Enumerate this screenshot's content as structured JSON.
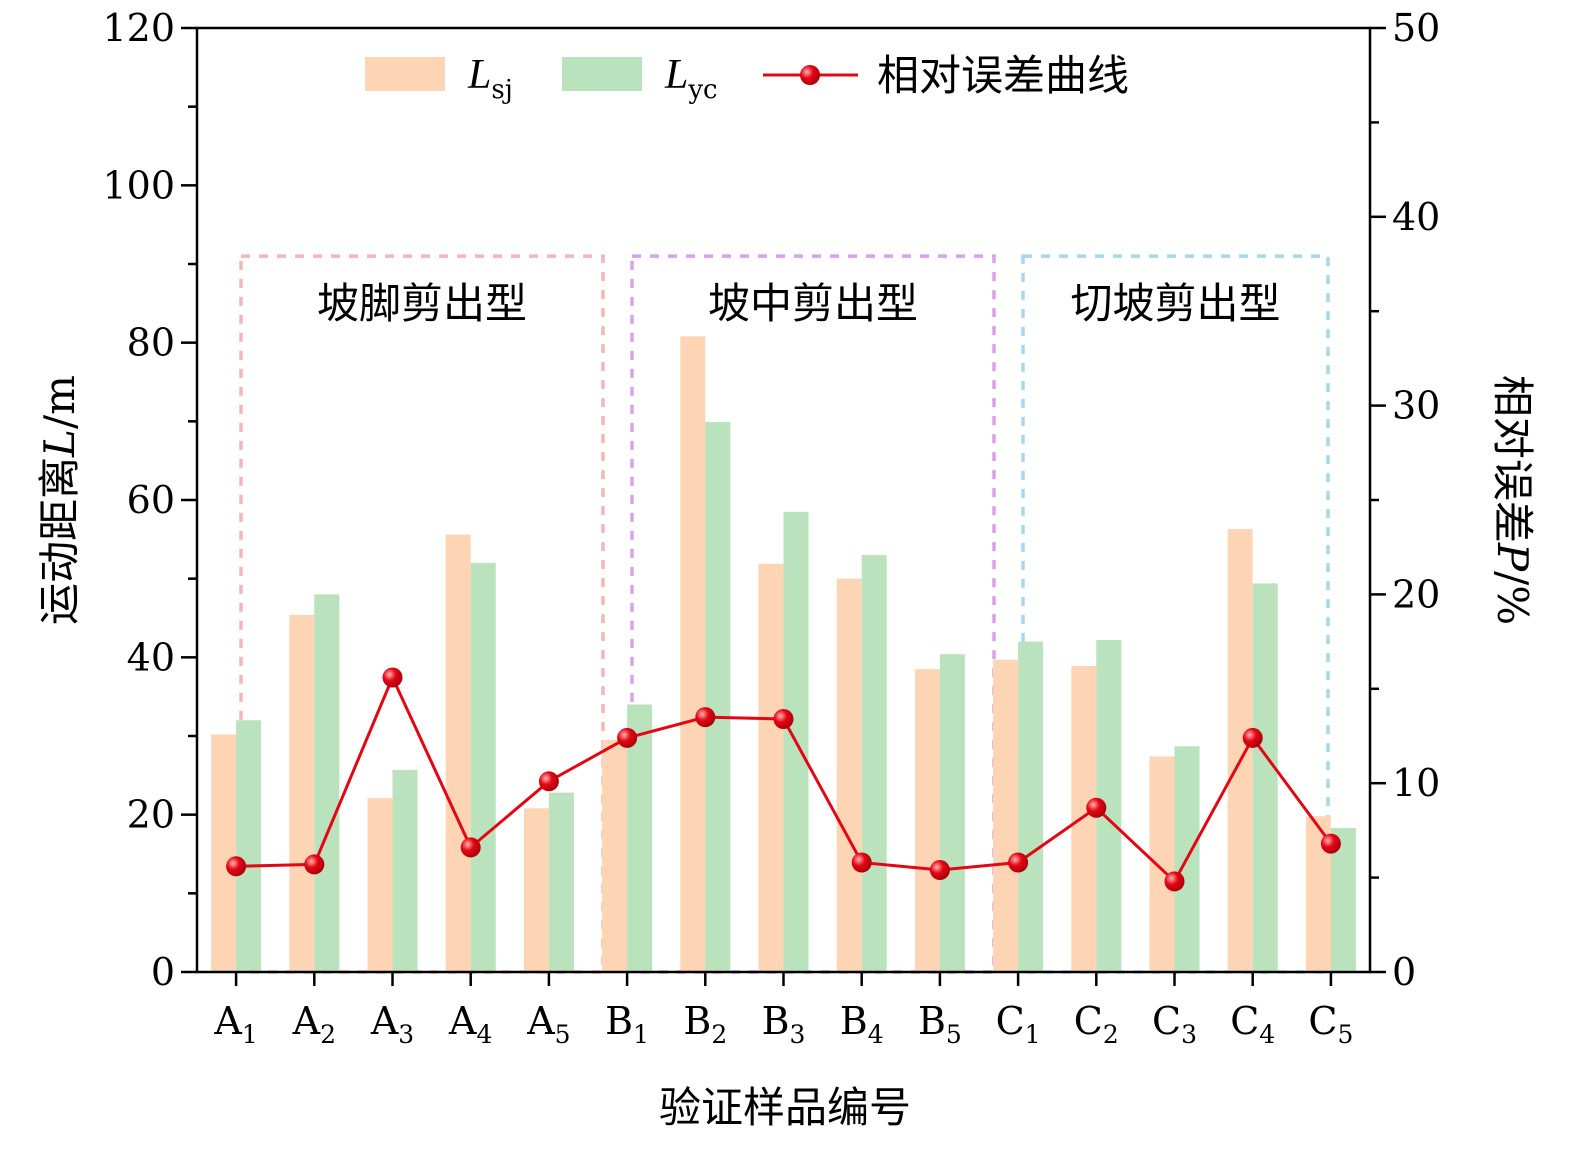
{
  "chart_data": {
    "type": "bar",
    "categories": [
      {
        "letter": "A",
        "sub": "1"
      },
      {
        "letter": "A",
        "sub": "2"
      },
      {
        "letter": "A",
        "sub": "3"
      },
      {
        "letter": "A",
        "sub": "4"
      },
      {
        "letter": "A",
        "sub": "5"
      },
      {
        "letter": "B",
        "sub": "1"
      },
      {
        "letter": "B",
        "sub": "2"
      },
      {
        "letter": "B",
        "sub": "3"
      },
      {
        "letter": "B",
        "sub": "4"
      },
      {
        "letter": "B",
        "sub": "5"
      },
      {
        "letter": "C",
        "sub": "1"
      },
      {
        "letter": "C",
        "sub": "2"
      },
      {
        "letter": "C",
        "sub": "3"
      },
      {
        "letter": "C",
        "sub": "4"
      },
      {
        "letter": "C",
        "sub": "5"
      }
    ],
    "series": [
      {
        "name_main": "L",
        "name_sub": "sj",
        "type": "bar",
        "axis": "left",
        "color": "#fdd5b4",
        "values": [
          30.2,
          45.4,
          22.1,
          55.6,
          20.8,
          29.5,
          80.8,
          51.9,
          50.0,
          38.5,
          39.7,
          38.9,
          27.4,
          56.3,
          19.8
        ]
      },
      {
        "name_main": "L",
        "name_sub": "yc",
        "type": "bar",
        "axis": "left",
        "color": "#b9e2bd",
        "values": [
          32.0,
          48.0,
          25.7,
          52.0,
          22.8,
          34.0,
          69.9,
          58.5,
          53.0,
          40.4,
          42.0,
          42.2,
          28.7,
          49.4,
          18.3
        ]
      },
      {
        "name": "相对误差曲线",
        "type": "line",
        "axis": "right",
        "color": "#e30613",
        "values": [
          5.6,
          5.7,
          15.6,
          6.6,
          10.1,
          12.4,
          13.5,
          13.4,
          5.8,
          5.4,
          5.8,
          8.7,
          4.8,
          12.4,
          6.8
        ]
      }
    ],
    "ylabel_left_main": "运动距离",
    "ylabel_left_var": "L",
    "ylabel_left_unit": "/m",
    "ylabel_right_main": "相对误差",
    "ylabel_right_var": "P",
    "ylabel_right_unit": "/%",
    "xlabel": "验证样品编号",
    "ylim_left": [
      0,
      120
    ],
    "ylim_right": [
      0,
      50
    ],
    "yticks_left": [
      "0",
      "20",
      "40",
      "60",
      "80",
      "100",
      "120"
    ],
    "yticks_right": [
      "0",
      "10",
      "20",
      "30",
      "40",
      "50"
    ],
    "groups": [
      {
        "label": "坡脚剪出型",
        "from": 0,
        "to": 4,
        "color": "#f4b6b6"
      },
      {
        "label": "坡中剪出型",
        "from": 5,
        "to": 9,
        "color": "#dba0ec"
      },
      {
        "label": "切坡剪出型",
        "from": 10,
        "to": 14,
        "color": "#a8d6ef"
      }
    ],
    "group_box_top_value": 91,
    "legend_position": "top-center",
    "grid": false
  }
}
